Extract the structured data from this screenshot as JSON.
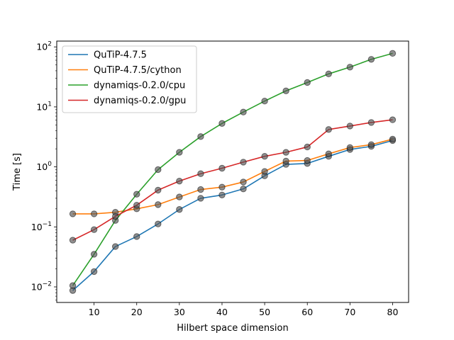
{
  "chart_data": {
    "type": "line",
    "title": "",
    "xlabel": "Hilbert space dimension",
    "ylabel": "Time [s]",
    "yscale": "log",
    "xlim": [
      1.25,
      83.75
    ],
    "ylim": [
      0.0055,
      125
    ],
    "x_ticks": [
      10,
      20,
      30,
      40,
      50,
      60,
      70,
      80
    ],
    "x_tick_labels": [
      "10",
      "20",
      "30",
      "40",
      "50",
      "60",
      "70",
      "80"
    ],
    "y_ticks": [
      0.01,
      0.1,
      1,
      10,
      100
    ],
    "y_tick_labels": [
      {
        "base": "10",
        "exp": "−2"
      },
      {
        "base": "10",
        "exp": "−1"
      },
      {
        "base": "10",
        "exp": "0"
      },
      {
        "base": "10",
        "exp": "1"
      },
      {
        "base": "10",
        "exp": "2"
      }
    ],
    "legend_position": "top-left",
    "marker_color": "#555555",
    "x": [
      5,
      10,
      15,
      20,
      25,
      30,
      35,
      40,
      45,
      50,
      55,
      60,
      65,
      70,
      75,
      80
    ],
    "series": [
      {
        "name": "QuTiP-4.7.5",
        "color": "#1f77b4",
        "values": [
          0.0087,
          0.018,
          0.047,
          0.069,
          0.112,
          0.195,
          0.3,
          0.34,
          0.43,
          0.71,
          1.1,
          1.14,
          1.5,
          1.95,
          2.2,
          2.75
        ]
      },
      {
        "name": "QuTiP-4.7.5/cython",
        "color": "#ff7f0e",
        "values": [
          0.165,
          0.165,
          0.175,
          0.2,
          0.235,
          0.315,
          0.42,
          0.46,
          0.56,
          0.84,
          1.25,
          1.28,
          1.65,
          2.1,
          2.35,
          2.9
        ]
      },
      {
        "name": "dynamiqs-0.2.0/cpu",
        "color": "#2ca02c",
        "values": [
          0.0105,
          0.035,
          0.128,
          0.35,
          0.9,
          1.75,
          3.2,
          5.3,
          8.2,
          12.5,
          18.5,
          25.5,
          35.5,
          46,
          62,
          78
        ]
      },
      {
        "name": "dynamiqs-0.2.0/gpu",
        "color": "#d62728",
        "values": [
          0.06,
          0.09,
          0.15,
          0.23,
          0.41,
          0.58,
          0.77,
          0.95,
          1.2,
          1.5,
          1.75,
          2.15,
          4.2,
          4.8,
          5.5,
          6.1
        ]
      }
    ]
  }
}
